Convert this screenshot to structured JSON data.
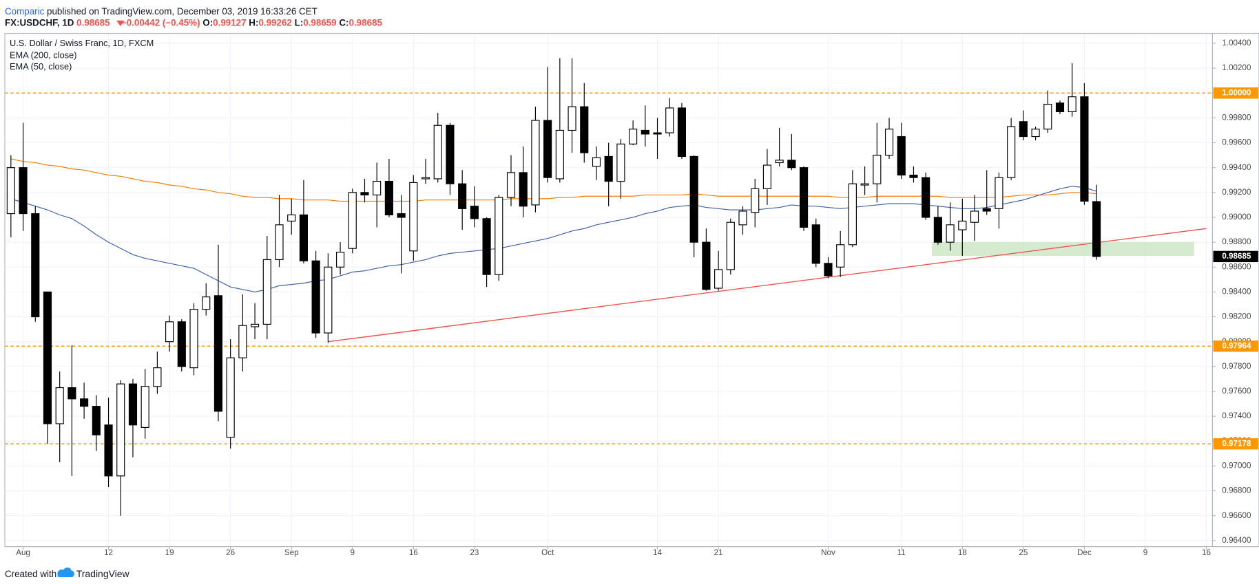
{
  "header": {
    "publisher": "Comparic",
    "published": "published on TradingView.com, December 03, 2019 16:33:26 CET",
    "symbol": "FX:USDCHF, 1D",
    "last": "0.98685",
    "change": "−0.00442 (−0.45%)",
    "ohlc": [
      {
        "label": "O:",
        "value": "0.99127"
      },
      {
        "label": "H:",
        "value": "0.99262"
      },
      {
        "label": "L:",
        "value": "0.98659"
      },
      {
        "label": "C:",
        "value": "0.98685"
      }
    ]
  },
  "footer": {
    "created": "Created with",
    "brand": "TradingView"
  },
  "chart_data": {
    "type": "candlestick",
    "title": "U.S. Dollar / Swiss Franc, 1D, FXCM",
    "up_color": "#ffffff",
    "down_color": "#000000",
    "wick_color": "#000000",
    "categories": [
      null,
      "Aug",
      null,
      null,
      null,
      null,
      null,
      null,
      "12",
      null,
      null,
      null,
      null,
      "19",
      null,
      null,
      null,
      null,
      "26",
      null,
      null,
      null,
      null,
      "Sep",
      null,
      null,
      null,
      null,
      "9",
      null,
      null,
      null,
      null,
      "16",
      null,
      null,
      null,
      null,
      "23",
      null,
      null,
      null,
      null,
      null,
      "Oct",
      null,
      null,
      null,
      null,
      null,
      null,
      null,
      null,
      "14",
      null,
      null,
      null,
      null,
      "21",
      null,
      null,
      null,
      null,
      null,
      null,
      null,
      null,
      "Nov",
      null,
      null,
      null,
      null,
      null,
      "11",
      null,
      null,
      null,
      null,
      "18",
      null,
      null,
      null,
      null,
      "25",
      null,
      null,
      null,
      null,
      "Dec",
      null,
      null,
      null,
      null,
      "9",
      null,
      null,
      null,
      null,
      "16"
    ],
    "open": [
      0.9903,
      0.994,
      0.9903,
      0.984,
      0.9734,
      0.9763,
      0.9754,
      0.9748,
      0.9733,
      0.9692,
      0.9766,
      0.9731,
      0.9764,
      0.98,
      0.9816,
      0.9779,
      0.9826,
      0.9837,
      0.9723,
      0.9787,
      0.9812,
      0.9814,
      0.9866,
      0.9897,
      0.9902,
      0.9865,
      0.9807,
      0.986,
      0.9875,
      0.992,
      0.9918,
      0.9929,
      0.9903,
      0.9873,
      0.9931,
      0.9931,
      0.9974,
      0.9927,
      0.9909,
      0.9899,
      0.9854,
      0.9916,
      0.9936,
      0.991,
      0.9978,
      0.9931,
      0.997,
      0.9989,
      0.9941,
      0.9949,
      0.9929,
      0.9959,
      0.997,
      0.9968,
      0.9968,
      0.9988,
      0.9949,
      0.988,
      0.9843,
      0.9858,
      0.9894,
      0.9904,
      0.9923,
      0.9944,
      0.9946,
      0.994,
      0.9894,
      0.9863,
      0.986,
      0.9878,
      0.9926,
      0.9927,
      0.995,
      0.9965,
      0.9934,
      0.9932,
      0.99,
      0.988,
      0.989,
      0.9896,
      0.9907,
      0.9907,
      0.9932,
      0.9977,
      0.9965,
      0.9971,
      0.9992,
      0.9985,
      0.9997,
      0.99127,
      null,
      null,
      null,
      null,
      null,
      null,
      null,
      null,
      null
    ],
    "high": [
      0.995,
      0.9976,
      0.9909,
      0.984,
      0.9776,
      0.9797,
      0.9767,
      0.9757,
      0.9755,
      0.9769,
      0.977,
      0.9778,
      0.9792,
      0.9821,
      0.9818,
      0.9831,
      0.9847,
      0.9878,
      0.9802,
      0.9838,
      0.9831,
      0.9885,
      0.9918,
      0.9915,
      0.993,
      0.9873,
      0.9871,
      0.988,
      0.9923,
      0.9931,
      0.9944,
      0.9947,
      0.9918,
      0.9934,
      0.9947,
      0.9984,
      0.9976,
      0.9938,
      0.9925,
      0.99,
      0.9918,
      0.995,
      0.9957,
      0.9989,
      1.0021,
      1.0028,
      1.0028,
      1.0008,
      0.9957,
      0.996,
      0.9963,
      0.9978,
      0.999,
      0.998,
      0.9996,
      0.9992,
      0.995,
      0.9891,
      0.9873,
      0.9899,
      0.9909,
      0.9931,
      0.9955,
      0.9972,
      0.9967,
      0.9941,
      0.9899,
      0.9868,
      0.9889,
      0.9938,
      0.9941,
      0.9976,
      0.998,
      0.9976,
      0.9941,
      0.9936,
      0.9909,
      0.9912,
      0.9915,
      0.9918,
      0.9938,
      0.9936,
      0.998,
      0.9986,
      0.9973,
      1.0002,
      0.9994,
      1.0024,
      1.0008,
      0.99262,
      null,
      null,
      null,
      null,
      null,
      null,
      null,
      null,
      null
    ],
    "low": [
      0.9884,
      0.9889,
      0.9816,
      0.9718,
      0.9703,
      0.9692,
      0.9738,
      0.9712,
      0.9683,
      0.966,
      0.9707,
      0.9722,
      0.9758,
      0.9792,
      0.9776,
      0.9773,
      0.9821,
      0.9736,
      0.9714,
      0.9776,
      0.9802,
      0.9802,
      0.986,
      0.9886,
      0.9863,
      0.9803,
      0.9799,
      0.9854,
      0.9871,
      0.9912,
      0.9892,
      0.99,
      0.9855,
      0.9865,
      0.9927,
      0.9928,
      0.9918,
      0.989,
      0.9892,
      0.9844,
      0.9849,
      0.9909,
      0.99,
      0.9904,
      0.9928,
      0.9928,
      0.9952,
      0.9944,
      0.993,
      0.9909,
      0.9915,
      0.9958,
      0.9957,
      0.9947,
      0.9965,
      0.9947,
      0.9868,
      0.9841,
      0.9841,
      0.9854,
      0.9886,
      0.9892,
      0.991,
      0.9941,
      0.9938,
      0.9889,
      0.986,
      0.9851,
      0.9852,
      0.9876,
      0.9918,
      0.9912,
      0.9947,
      0.9931,
      0.9928,
      0.9898,
      0.9878,
      0.9873,
      0.9869,
      0.9881,
      0.9902,
      0.9891,
      0.993,
      0.9962,
      0.9962,
      0.9968,
      0.9983,
      0.9981,
      0.991,
      0.98659,
      null,
      null,
      null,
      null,
      null,
      null,
      null,
      null,
      null
    ],
    "close": [
      0.994,
      0.9903,
      0.982,
      0.9734,
      0.9763,
      0.9754,
      0.9748,
      0.9725,
      0.9692,
      0.9766,
      0.9733,
      0.9764,
      0.9779,
      0.9816,
      0.978,
      0.9826,
      0.9836,
      0.9744,
      0.9787,
      0.9813,
      0.9814,
      0.9866,
      0.9894,
      0.9902,
      0.9865,
      0.9807,
      0.986,
      0.9872,
      0.992,
      0.9918,
      0.9929,
      0.9902,
      0.99,
      0.9928,
      0.9932,
      0.9974,
      0.9927,
      0.9907,
      0.9899,
      0.9854,
      0.9916,
      0.9936,
      0.9909,
      0.9978,
      0.9932,
      0.997,
      0.9989,
      0.9952,
      0.9948,
      0.9929,
      0.9959,
      0.9971,
      0.9967,
      0.9967,
      0.9988,
      0.9949,
      0.988,
      0.9842,
      0.9858,
      0.9896,
      0.9905,
      0.9923,
      0.9942,
      0.9946,
      0.994,
      0.9892,
      0.9863,
      0.9853,
      0.9878,
      0.9927,
      0.9927,
      0.995,
      0.9971,
      0.9934,
      0.9932,
      0.99,
      0.988,
      0.9894,
      0.9897,
      0.9905,
      0.9905,
      0.9932,
      0.9973,
      0.9965,
      0.9971,
      0.9991,
      0.9985,
      0.9997,
      0.9913,
      0.98685,
      null,
      null,
      null,
      null,
      null,
      null,
      null,
      null,
      null
    ],
    "series": [
      {
        "name": "EMA (200, close)",
        "color": "#f57c00",
        "values": [
          0.9947,
          0.9945,
          0.9944,
          0.9942,
          0.9941,
          0.9939,
          0.9938,
          0.9936,
          0.9934,
          0.9933,
          0.9931,
          0.9929,
          0.9928,
          0.9926,
          0.9925,
          0.9923,
          0.9922,
          0.992,
          0.9919,
          0.9917,
          0.9916,
          0.9916,
          0.9915,
          0.9915,
          0.9914,
          0.9914,
          0.9914,
          0.9913,
          0.9913,
          0.9913,
          0.9913,
          0.9913,
          0.9913,
          0.9913,
          0.9914,
          0.9914,
          0.9914,
          0.9914,
          0.9914,
          0.9914,
          0.9914,
          0.9915,
          0.9915,
          0.9915,
          0.9915,
          0.9916,
          0.9916,
          0.9917,
          0.9917,
          0.9917,
          0.9917,
          0.9917,
          0.9918,
          0.9918,
          0.9918,
          0.9918,
          0.9919,
          0.9918,
          0.9917,
          0.9917,
          0.9917,
          0.9917,
          0.9917,
          0.9917,
          0.9917,
          0.9917,
          0.9917,
          0.9917,
          0.9916,
          0.9916,
          0.9916,
          0.9917,
          0.9917,
          0.9917,
          0.9917,
          0.9917,
          0.9917,
          0.9916,
          0.9916,
          0.9916,
          0.9916,
          0.9916,
          0.9917,
          0.9918,
          0.9918,
          0.9918,
          0.9919,
          0.992,
          0.992,
          0.9919,
          null,
          null,
          null,
          null,
          null,
          null,
          null,
          null,
          null
        ]
      },
      {
        "name": "EMA (50, close)",
        "color": "#3d5fa8",
        "values": [
          0.9915,
          0.9912,
          0.9909,
          0.9906,
          0.9902,
          0.9899,
          0.9893,
          0.9886,
          0.988,
          0.9875,
          0.987,
          0.9867,
          0.9865,
          0.9863,
          0.9861,
          0.9859,
          0.9854,
          0.9849,
          0.9844,
          0.9842,
          0.984,
          0.9842,
          0.9845,
          0.9846,
          0.9847,
          0.9849,
          0.985,
          0.9853,
          0.9856,
          0.9857,
          0.9859,
          0.9861,
          0.9862,
          0.9864,
          0.9866,
          0.9869,
          0.9871,
          0.9872,
          0.9873,
          0.9874,
          0.9875,
          0.9877,
          0.9879,
          0.9881,
          0.9883,
          0.9886,
          0.9889,
          0.9891,
          0.9894,
          0.9896,
          0.9898,
          0.99,
          0.9903,
          0.9905,
          0.9908,
          0.9909,
          0.991,
          0.9908,
          0.9907,
          0.9906,
          0.9906,
          0.9906,
          0.9907,
          0.9908,
          0.991,
          0.9909,
          0.9909,
          0.9908,
          0.9907,
          0.9908,
          0.9909,
          0.991,
          0.9911,
          0.9911,
          0.9911,
          0.991,
          0.9909,
          0.9908,
          0.9907,
          0.9907,
          0.9908,
          0.991,
          0.9912,
          0.9914,
          0.9917,
          0.992,
          0.9923,
          0.9925,
          0.9924,
          0.9921,
          null,
          null,
          null,
          null,
          null,
          null,
          null,
          null,
          null
        ]
      }
    ],
    "levels": [
      {
        "value": 1,
        "label": "1.00000"
      },
      0.97964,
      0.97178
    ],
    "level_color": "#ff9800",
    "trendline": {
      "color": "#f05350",
      "x": [
        26,
        98
      ],
      "values": [
        0.98,
        0.9891
      ]
    },
    "zone": {
      "color": "#b5d9a8",
      "x": [
        76,
        97
      ],
      "range": [
        0.9869,
        0.988
      ]
    },
    "ylim": [
      0.9639,
      1.0048
    ],
    "yticks": [
      {
        "value": 0.964,
        "label": "0.96400"
      },
      {
        "value": 0.966,
        "label": "0.96600"
      },
      {
        "value": 0.968,
        "label": "0.96800"
      },
      {
        "value": 0.97,
        "label": "0.97000"
      },
      {
        "value": 0.972,
        "label": "0.97200"
      },
      {
        "value": 0.974,
        "label": "0.97400"
      },
      {
        "value": 0.976,
        "label": "0.97600"
      },
      {
        "value": 0.978,
        "label": "0.97800"
      },
      {
        "value": 0.98,
        "label": "0.98000"
      },
      {
        "value": 0.982,
        "label": "0.98200"
      },
      {
        "value": 0.984,
        "label": "0.98400"
      },
      {
        "value": 0.986,
        "label": "0.98600"
      },
      {
        "value": 0.988,
        "label": "0.98800"
      },
      {
        "value": 0.99,
        "label": "0.99000"
      },
      {
        "value": 0.992,
        "label": "0.99200"
      },
      {
        "value": 0.994,
        "label": "0.99400"
      },
      {
        "value": 0.996,
        "label": "0.99600"
      },
      {
        "value": 0.998,
        "label": "0.99800"
      },
      {
        "value": 1,
        "label": "1.00000"
      },
      {
        "value": 1.002,
        "label": "1.00200"
      },
      {
        "value": 1.004,
        "label": "1.00400"
      }
    ],
    "grid": true
  }
}
